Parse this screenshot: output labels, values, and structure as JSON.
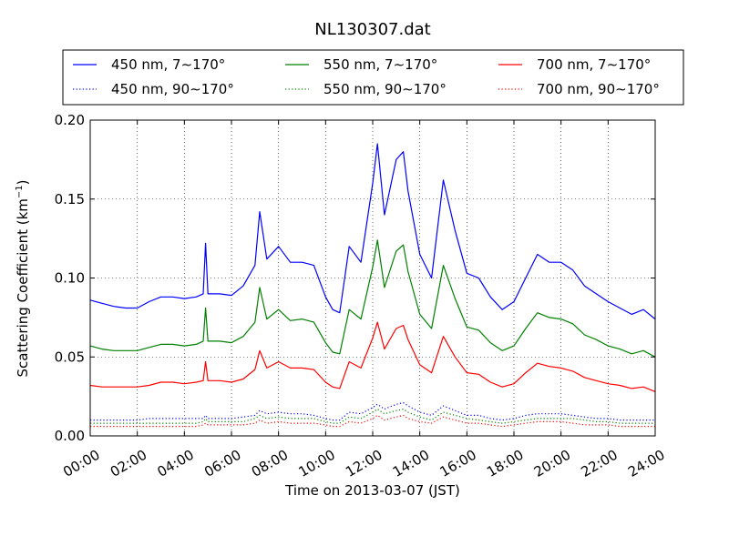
{
  "chart_data": {
    "type": "line",
    "title": "NL130307.dat",
    "xlabel": "Time on 2013-03-07 (JST)",
    "ylabel": "Scattering Coefficient (km",
    "ylabel_sup": "−1",
    "ylabel_close": ")",
    "xlim": [
      0,
      24
    ],
    "ylim": [
      0,
      0.2
    ],
    "grid": true,
    "legend_position": "top",
    "x_ticks": [
      {
        "value": 0,
        "label": "00:00"
      },
      {
        "value": 2,
        "label": "02:00"
      },
      {
        "value": 4,
        "label": "04:00"
      },
      {
        "value": 6,
        "label": "06:00"
      },
      {
        "value": 8,
        "label": "08:00"
      },
      {
        "value": 10,
        "label": "10:00"
      },
      {
        "value": 12,
        "label": "12:00"
      },
      {
        "value": 14,
        "label": "14:00"
      },
      {
        "value": 16,
        "label": "16:00"
      },
      {
        "value": 18,
        "label": "18:00"
      },
      {
        "value": 20,
        "label": "20:00"
      },
      {
        "value": 22,
        "label": "22:00"
      },
      {
        "value": 24,
        "label": "24:00"
      }
    ],
    "y_ticks": [
      {
        "value": 0,
        "label": "0.00"
      },
      {
        "value": 0.05,
        "label": "0.05"
      },
      {
        "value": 0.1,
        "label": "0.10"
      },
      {
        "value": 0.15,
        "label": "0.15"
      },
      {
        "value": 0.2,
        "label": "0.20"
      }
    ],
    "x": [
      0,
      0.5,
      1,
      1.5,
      2,
      2.5,
      3,
      3.5,
      4,
      4.5,
      4.8,
      4.9,
      5,
      5.1,
      5.5,
      6,
      6.5,
      7,
      7.2,
      7.5,
      8,
      8.5,
      9,
      9.5,
      10,
      10.3,
      10.6,
      11,
      11.5,
      12,
      12.2,
      12.5,
      13,
      13.3,
      13.5,
      14,
      14.5,
      15,
      15.5,
      16,
      16.5,
      17,
      17.5,
      18,
      18.5,
      19,
      19.5,
      20,
      20.5,
      21,
      21.5,
      22,
      22.5,
      23,
      23.5,
      24
    ],
    "series": [
      {
        "name": "450 nm, 7∼170°",
        "color": "#0000ff",
        "style": "solid",
        "values": [
          0.086,
          0.084,
          0.082,
          0.081,
          0.081,
          0.085,
          0.088,
          0.088,
          0.087,
          0.088,
          0.09,
          0.122,
          0.09,
          0.09,
          0.09,
          0.089,
          0.095,
          0.108,
          0.142,
          0.112,
          0.12,
          0.11,
          0.11,
          0.108,
          0.088,
          0.08,
          0.078,
          0.12,
          0.11,
          0.16,
          0.185,
          0.14,
          0.175,
          0.18,
          0.155,
          0.115,
          0.1,
          0.162,
          0.13,
          0.103,
          0.1,
          0.088,
          0.08,
          0.085,
          0.1,
          0.115,
          0.11,
          0.11,
          0.105,
          0.095,
          0.09,
          0.085,
          0.081,
          0.077,
          0.08,
          0.074
        ]
      },
      {
        "name": "550 nm, 7∼170°",
        "color": "#008000",
        "style": "solid",
        "values": [
          0.057,
          0.055,
          0.054,
          0.054,
          0.054,
          0.056,
          0.058,
          0.058,
          0.057,
          0.058,
          0.06,
          0.081,
          0.06,
          0.06,
          0.06,
          0.059,
          0.063,
          0.072,
          0.094,
          0.074,
          0.08,
          0.073,
          0.074,
          0.072,
          0.059,
          0.053,
          0.052,
          0.08,
          0.074,
          0.107,
          0.124,
          0.094,
          0.117,
          0.121,
          0.104,
          0.077,
          0.068,
          0.108,
          0.087,
          0.069,
          0.067,
          0.059,
          0.054,
          0.057,
          0.068,
          0.078,
          0.075,
          0.074,
          0.071,
          0.064,
          0.061,
          0.057,
          0.055,
          0.052,
          0.054,
          0.05
        ]
      },
      {
        "name": "700 nm, 7∼170°",
        "color": "#ff0000",
        "style": "solid",
        "values": [
          0.032,
          0.031,
          0.031,
          0.031,
          0.031,
          0.032,
          0.034,
          0.034,
          0.033,
          0.034,
          0.035,
          0.047,
          0.035,
          0.035,
          0.035,
          0.034,
          0.036,
          0.042,
          0.054,
          0.043,
          0.047,
          0.043,
          0.043,
          0.042,
          0.034,
          0.031,
          0.03,
          0.047,
          0.043,
          0.062,
          0.072,
          0.055,
          0.068,
          0.07,
          0.061,
          0.045,
          0.04,
          0.063,
          0.05,
          0.04,
          0.039,
          0.034,
          0.031,
          0.033,
          0.04,
          0.046,
          0.044,
          0.043,
          0.041,
          0.037,
          0.035,
          0.033,
          0.032,
          0.03,
          0.031,
          0.028
        ]
      },
      {
        "name": "450 nm, 90∼170°",
        "color": "#0000ff",
        "style": "dotted",
        "values": [
          0.01,
          0.01,
          0.01,
          0.01,
          0.01,
          0.011,
          0.011,
          0.011,
          0.011,
          0.011,
          0.011,
          0.013,
          0.011,
          0.011,
          0.011,
          0.011,
          0.012,
          0.013,
          0.016,
          0.014,
          0.015,
          0.014,
          0.014,
          0.013,
          0.011,
          0.01,
          0.01,
          0.015,
          0.014,
          0.018,
          0.02,
          0.017,
          0.02,
          0.021,
          0.019,
          0.015,
          0.013,
          0.019,
          0.016,
          0.013,
          0.013,
          0.011,
          0.01,
          0.011,
          0.013,
          0.014,
          0.014,
          0.014,
          0.013,
          0.012,
          0.011,
          0.011,
          0.01,
          0.01,
          0.01,
          0.01
        ]
      },
      {
        "name": "550 nm, 90∼170°",
        "color": "#008000",
        "style": "dotted",
        "values": [
          0.008,
          0.008,
          0.008,
          0.008,
          0.008,
          0.008,
          0.008,
          0.008,
          0.008,
          0.008,
          0.009,
          0.011,
          0.009,
          0.009,
          0.009,
          0.009,
          0.009,
          0.011,
          0.013,
          0.011,
          0.012,
          0.011,
          0.011,
          0.011,
          0.009,
          0.008,
          0.008,
          0.012,
          0.011,
          0.015,
          0.017,
          0.014,
          0.016,
          0.017,
          0.015,
          0.012,
          0.01,
          0.015,
          0.013,
          0.011,
          0.01,
          0.009,
          0.008,
          0.009,
          0.01,
          0.011,
          0.011,
          0.011,
          0.011,
          0.01,
          0.009,
          0.009,
          0.008,
          0.008,
          0.008,
          0.008
        ]
      },
      {
        "name": "700 nm, 90∼170°",
        "color": "#ff0000",
        "style": "dotted",
        "values": [
          0.006,
          0.006,
          0.006,
          0.006,
          0.006,
          0.006,
          0.006,
          0.006,
          0.006,
          0.006,
          0.007,
          0.008,
          0.007,
          0.007,
          0.007,
          0.007,
          0.007,
          0.008,
          0.01,
          0.008,
          0.009,
          0.008,
          0.008,
          0.008,
          0.007,
          0.006,
          0.006,
          0.009,
          0.008,
          0.011,
          0.013,
          0.01,
          0.012,
          0.013,
          0.011,
          0.009,
          0.008,
          0.012,
          0.01,
          0.008,
          0.008,
          0.007,
          0.006,
          0.007,
          0.008,
          0.009,
          0.009,
          0.009,
          0.008,
          0.007,
          0.007,
          0.007,
          0.006,
          0.006,
          0.006,
          0.006
        ]
      }
    ]
  }
}
